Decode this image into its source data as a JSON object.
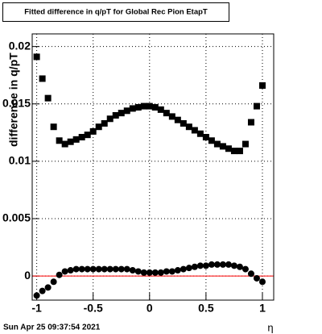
{
  "chart_data": {
    "type": "scatter",
    "title": "Fitted difference in q/pT for Global Rec Pion EtapT",
    "y_label": "difference in q/pT",
    "x_label": "η",
    "timestamp": "Sun Apr 25 09:37:54 2021",
    "x": [
      -1.0,
      -0.95,
      -0.9,
      -0.85,
      -0.8,
      -0.75,
      -0.7,
      -0.65,
      -0.6,
      -0.55,
      -0.5,
      -0.45,
      -0.4,
      -0.35,
      -0.3,
      -0.25,
      -0.2,
      -0.15,
      -0.1,
      -0.05,
      0,
      0.05,
      0.1,
      0.15,
      0.2,
      0.25,
      0.3,
      0.35,
      0.4,
      0.45,
      0.5,
      0.55,
      0.6,
      0.65,
      0.7,
      0.75,
      0.8,
      0.85,
      0.9,
      0.95,
      1.0
    ],
    "series": [
      {
        "marker": "square",
        "color": "#000000",
        "values": [
          0.0191,
          0.0172,
          0.0155,
          0.013,
          0.0118,
          0.0115,
          0.0117,
          0.0119,
          0.0121,
          0.0123,
          0.0126,
          0.013,
          0.0133,
          0.0137,
          0.014,
          0.0142,
          0.0144,
          0.0146,
          0.0147,
          0.0148,
          0.0148,
          0.0147,
          0.0145,
          0.0142,
          0.0139,
          0.0136,
          0.0133,
          0.013,
          0.0127,
          0.0124,
          0.0121,
          0.0118,
          0.0115,
          0.0113,
          0.0111,
          0.0109,
          0.0109,
          0.0115,
          0.0134,
          0.0148,
          0.0166
        ]
      },
      {
        "marker": "circle",
        "color": "#000000",
        "values": [
          -0.0017,
          -0.0013,
          -0.001,
          -0.0005,
          0.0001,
          0.0004,
          0.0005,
          0.0006,
          0.0006,
          0.0006,
          0.0006,
          0.0006,
          0.0006,
          0.0006,
          0.0006,
          0.0006,
          0.0006,
          0.0005,
          0.0004,
          0.0003,
          0.0003,
          0.0003,
          0.0003,
          0.0004,
          0.0004,
          0.0005,
          0.0006,
          0.0007,
          0.0008,
          0.0009,
          0.0009,
          0.001,
          0.001,
          0.001,
          0.001,
          0.0009,
          0.0008,
          0.0006,
          0.0002,
          -0.0002,
          -0.0005
        ]
      }
    ],
    "reference_line": {
      "value": 0,
      "color": "#ff0000"
    },
    "xlim": [
      -1.04,
      1.1
    ],
    "ylim": [
      -0.0021,
      0.0211
    ],
    "xticks": [
      -1,
      -0.5,
      0,
      0.5,
      1
    ],
    "yticks": [
      0,
      0.005,
      0.01,
      0.015,
      0.02
    ],
    "grid": true
  }
}
